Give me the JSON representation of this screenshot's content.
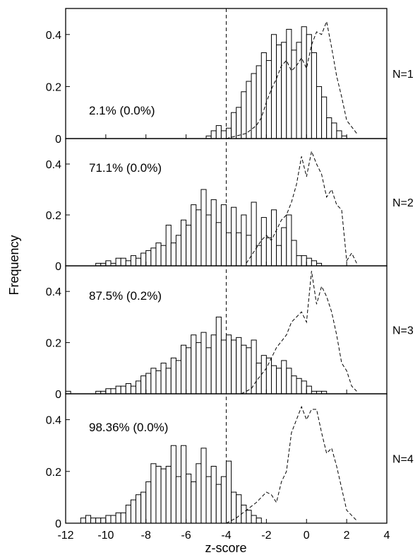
{
  "chart_data": {
    "type": "histogram-panels",
    "xlabel": "z-score",
    "ylabel": "Frequency",
    "xlim": [
      -12,
      4
    ],
    "x_ticks": [
      "-12",
      "-10",
      "-8",
      "-6",
      "-4",
      "-2",
      "0",
      "2",
      "4"
    ],
    "ylim": [
      0,
      0.5
    ],
    "y_ticks": [
      "0",
      "0.2",
      "0.4"
    ],
    "threshold_x": -4,
    "bin_width": 0.25,
    "panels": [
      {
        "label": "N=1",
        "annotation": "2.1% (0.0%)",
        "bars_start": -5.0,
        "bars": [
          0.01,
          0.03,
          0.05,
          0.03,
          0.04,
          0.1,
          0.12,
          0.18,
          0.22,
          0.25,
          0.28,
          0.33,
          0.3,
          0.4,
          0.36,
          0.37,
          0.42,
          0.34,
          0.37,
          0.43,
          0.4,
          0.33,
          0.2,
          0.16,
          0.08,
          0.06,
          0.03,
          0.01
        ],
        "dashed_x": [
          -4.0,
          -3.5,
          -3.0,
          -2.5,
          -2.25,
          -2.0,
          -1.75,
          -1.5,
          -1.25,
          -1.0,
          -0.75,
          -0.5,
          -0.25,
          0.0,
          0.25,
          0.5,
          0.75,
          1.0,
          1.25,
          1.5,
          1.75,
          2.0,
          2.5
        ],
        "dashed_y": [
          0.0,
          0.01,
          0.02,
          0.05,
          0.08,
          0.14,
          0.19,
          0.23,
          0.28,
          0.3,
          0.26,
          0.28,
          0.31,
          0.27,
          0.36,
          0.41,
          0.4,
          0.45,
          0.35,
          0.24,
          0.16,
          0.07,
          0.02
        ]
      },
      {
        "label": "N=2",
        "annotation": "71.1% (0.0%)",
        "bars_start": -11.0,
        "bars": [
          0.0,
          0.0,
          0.01,
          0.01,
          0.02,
          0.01,
          0.03,
          0.03,
          0.02,
          0.04,
          0.03,
          0.05,
          0.06,
          0.07,
          0.09,
          0.08,
          0.16,
          0.09,
          0.12,
          0.18,
          0.16,
          0.24,
          0.22,
          0.3,
          0.2,
          0.26,
          0.17,
          0.24,
          0.13,
          0.23,
          0.13,
          0.2,
          0.12,
          0.25,
          0.08,
          0.19,
          0.11,
          0.22,
          0.08,
          0.15,
          0.2,
          0.1,
          0.04,
          0.04,
          0.03,
          0.02,
          0.01
        ],
        "dashed_x": [
          -3.0,
          -2.75,
          -2.5,
          -2.25,
          -2.0,
          -1.75,
          -1.5,
          -1.25,
          -1.0,
          -0.75,
          -0.5,
          -0.25,
          0.0,
          0.25,
          0.5,
          0.75,
          1.0,
          1.25,
          1.5,
          1.75,
          2.0,
          2.25,
          2.5
        ],
        "dashed_y": [
          0.01,
          0.04,
          0.07,
          0.1,
          0.12,
          0.1,
          0.14,
          0.18,
          0.2,
          0.25,
          0.32,
          0.43,
          0.35,
          0.45,
          0.4,
          0.36,
          0.27,
          0.3,
          0.24,
          0.22,
          0.02,
          0.05,
          0.01
        ]
      },
      {
        "label": "N=3",
        "annotation": "87.5% (0.2%)",
        "bars_start": -12.0,
        "bars": [
          0.01,
          0.0,
          0.0,
          0.0,
          0.0,
          0.0,
          0.01,
          0.01,
          0.02,
          0.02,
          0.03,
          0.03,
          0.04,
          0.03,
          0.05,
          0.07,
          0.08,
          0.1,
          0.09,
          0.12,
          0.1,
          0.14,
          0.13,
          0.19,
          0.18,
          0.23,
          0.2,
          0.24,
          0.18,
          0.23,
          0.3,
          0.21,
          0.23,
          0.21,
          0.22,
          0.19,
          0.18,
          0.21,
          0.12,
          0.15,
          0.14,
          0.11,
          0.1,
          0.13,
          0.1,
          0.07,
          0.06,
          0.05,
          0.03,
          0.01,
          0.01,
          0.01
        ],
        "dashed_x": [
          -3.25,
          -3.0,
          -2.75,
          -2.5,
          -2.0,
          -1.5,
          -1.0,
          -0.75,
          -0.5,
          -0.25,
          0.0,
          0.25,
          0.5,
          0.75,
          1.0,
          1.25,
          1.5,
          1.75,
          2.0,
          2.25,
          2.5
        ],
        "dashed_y": [
          0.0,
          0.01,
          0.02,
          0.05,
          0.1,
          0.18,
          0.23,
          0.28,
          0.3,
          0.32,
          0.28,
          0.48,
          0.35,
          0.42,
          0.38,
          0.32,
          0.23,
          0.12,
          0.09,
          0.03,
          0.01
        ]
      },
      {
        "label": "N=4",
        "annotation": "98.36% (0.0%)",
        "bars_start": -11.5,
        "bars": [
          0.0,
          0.02,
          0.03,
          0.02,
          0.02,
          0.02,
          0.03,
          0.03,
          0.04,
          0.04,
          0.07,
          0.09,
          0.11,
          0.12,
          0.16,
          0.23,
          0.22,
          0.21,
          0.22,
          0.3,
          0.18,
          0.3,
          0.19,
          0.16,
          0.23,
          0.29,
          0.18,
          0.22,
          0.15,
          0.18,
          0.24,
          0.12,
          0.11,
          0.07,
          0.05,
          0.03,
          0.02
        ],
        "dashed_x": [
          -4.0,
          -3.5,
          -3.0,
          -2.5,
          -2.0,
          -1.75,
          -1.5,
          -1.25,
          -1.0,
          -0.75,
          -0.5,
          -0.25,
          0.0,
          0.25,
          0.5,
          0.75,
          1.0,
          1.25,
          1.5,
          2.0,
          2.5
        ],
        "dashed_y": [
          0.0,
          0.02,
          0.05,
          0.08,
          0.12,
          0.11,
          0.08,
          0.16,
          0.2,
          0.35,
          0.4,
          0.45,
          0.4,
          0.44,
          0.44,
          0.35,
          0.27,
          0.29,
          0.22,
          0.05,
          0.01
        ]
      }
    ]
  }
}
